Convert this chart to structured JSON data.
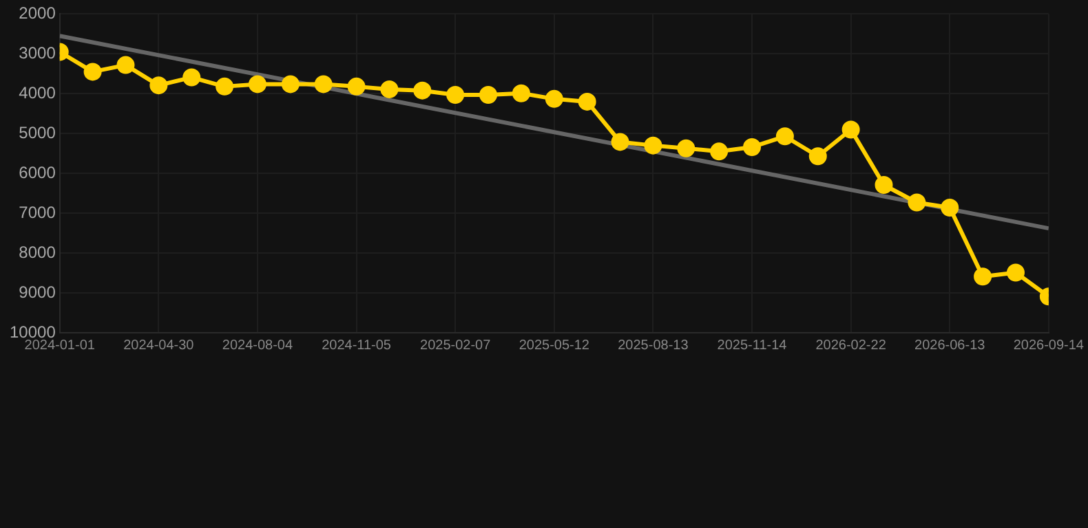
{
  "chart_data": {
    "type": "line",
    "categories": [
      "2024-01-01",
      null,
      null,
      "2024-04-30",
      null,
      null,
      "2024-08-04",
      null,
      null,
      "2024-11-05",
      null,
      null,
      "2025-02-07",
      null,
      null,
      "2025-05-12",
      null,
      null,
      "2025-08-13",
      null,
      null,
      "2025-11-14",
      null,
      null,
      "2026-02-22",
      null,
      null,
      "2026-06-13",
      null,
      null,
      "2026-09-14"
    ],
    "series": [
      {
        "color": "#ffd000",
        "marker": "circle",
        "values": [
          2950,
          3450,
          3280,
          3790,
          3590,
          3820,
          3760,
          3760,
          3760,
          3820,
          3890,
          3920,
          4030,
          4030,
          3990,
          4130,
          4200,
          5210,
          5300,
          5370,
          5450,
          5340,
          5070,
          5570,
          4900,
          6290,
          6730,
          6860,
          8590,
          8490,
          9090
        ]
      },
      {
        "type": "line",
        "color": "#666666",
        "marker": "none",
        "values": [
          2550,
          null,
          null,
          null,
          null,
          null,
          null,
          null,
          null,
          null,
          null,
          null,
          null,
          null,
          null,
          null,
          null,
          null,
          null,
          null,
          null,
          null,
          null,
          null,
          null,
          null,
          null,
          null,
          null,
          null,
          7380
        ]
      }
    ],
    "ylim": [
      10000,
      2000
    ],
    "yticks": [
      2000,
      3000,
      4000,
      5000,
      6000,
      7000,
      8000,
      9000,
      10000
    ],
    "grid": true,
    "legend": false
  }
}
